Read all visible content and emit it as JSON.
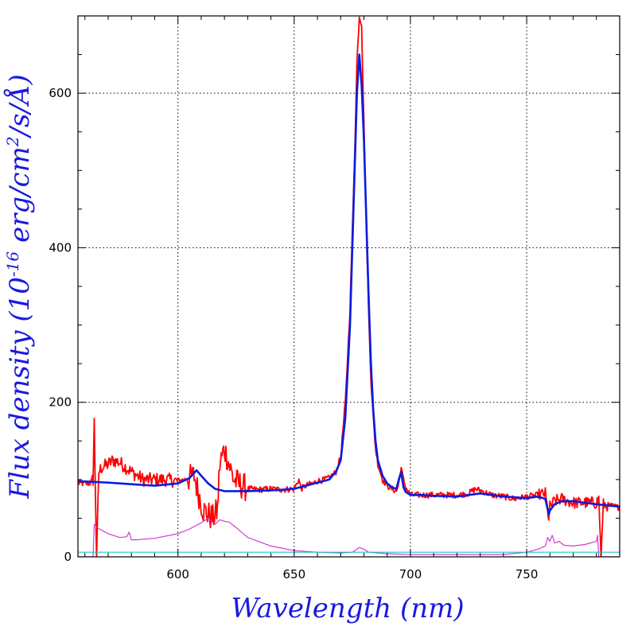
{
  "chart_data": {
    "type": "line",
    "title": "",
    "xlabel": "Wavelength (nm)",
    "ylabel": "Flux density (10",
    "ylabel_exp1": "-16",
    "ylabel_mid": " erg/cm",
    "ylabel_exp2": "2",
    "ylabel_tail": "/s/Å)",
    "xlim": [
      557,
      790
    ],
    "ylim": [
      0,
      700
    ],
    "x_ticks": [
      600,
      650,
      700,
      750
    ],
    "x_tick_labels": [
      "600",
      "650",
      "700",
      "750"
    ],
    "y_ticks": [
      0,
      200,
      400,
      600
    ],
    "y_tick_labels": [
      "0",
      "200",
      "400",
      "600"
    ],
    "grid": true,
    "series": [
      {
        "color": "#ff0000",
        "noise": true,
        "x": [
          557,
          562,
          563.5,
          564,
          565,
          566,
          567,
          570,
          572,
          575,
          580,
          585,
          590,
          595,
          600,
          603,
          605,
          607,
          609,
          611,
          613,
          615,
          617,
          618,
          620,
          622,
          624,
          626,
          630,
          635,
          640,
          645,
          650,
          652,
          653,
          655,
          658,
          660,
          663,
          665,
          668,
          670,
          672,
          674,
          675,
          676,
          677,
          678,
          679,
          680,
          681,
          682,
          683,
          684,
          685,
          686,
          688,
          690,
          692,
          694,
          695,
          696,
          697,
          698,
          700,
          705,
          710,
          715,
          720,
          725,
          728,
          731,
          735,
          740,
          745,
          750,
          755,
          758,
          759.5,
          760,
          762,
          765,
          770,
          775,
          780,
          781,
          782,
          783,
          786,
          790
        ],
        "y": [
          95,
          95,
          100,
          175,
          0,
          110,
          115,
          120,
          125,
          122,
          110,
          100,
          100,
          100,
          98,
          100,
          102,
          105,
          80,
          60,
          55,
          50,
          60,
          120,
          140,
          120,
          100,
          95,
          88,
          87,
          88,
          87,
          88,
          100,
          88,
          92,
          95,
          98,
          100,
          102,
          110,
          130,
          200,
          320,
          420,
          520,
          640,
          700,
          690,
          560,
          430,
          320,
          230,
          180,
          140,
          120,
          100,
          92,
          88,
          85,
          95,
          115,
          100,
          90,
          80,
          80,
          80,
          80,
          80,
          82,
          88,
          85,
          80,
          78,
          75,
          78,
          80,
          82,
          50,
          65,
          72,
          75,
          70,
          70,
          70,
          75,
          0,
          68,
          66,
          64
        ]
      },
      {
        "color": "#0a1ce0",
        "noise": false,
        "x": [
          557,
          570,
          580,
          590,
          600,
          605,
          608,
          610,
          613,
          616,
          620,
          625,
          630,
          640,
          650,
          655,
          660,
          665,
          668,
          670,
          672,
          674,
          675,
          676,
          677,
          678,
          679,
          680,
          681,
          682,
          683,
          684,
          685,
          686,
          688,
          690,
          692,
          694,
          695,
          696,
          697,
          698,
          700,
          705,
          710,
          720,
          730,
          735,
          740,
          750,
          755,
          758,
          759.5,
          760,
          762,
          765,
          770,
          780,
          790
        ],
        "y": [
          98,
          96,
          94,
          92,
          95,
          102,
          112,
          105,
          95,
          88,
          85,
          85,
          85,
          86,
          88,
          92,
          96,
          100,
          110,
          125,
          180,
          300,
          400,
          500,
          600,
          650,
          610,
          540,
          440,
          340,
          250,
          190,
          150,
          125,
          105,
          95,
          90,
          88,
          100,
          110,
          90,
          84,
          80,
          80,
          79,
          78,
          82,
          80,
          78,
          76,
          78,
          75,
          55,
          60,
          68,
          72,
          72,
          68,
          65
        ]
      },
      {
        "color": "#d23cd2",
        "noise": false,
        "x": [
          557,
          563.5,
          564,
          565,
          570,
          575,
          578,
          579,
          580,
          582,
          590,
          600,
          605,
          610,
          613,
          616,
          618,
          620,
          622,
          625,
          630,
          640,
          650,
          660,
          670,
          675,
          678,
          680,
          682,
          690,
          700,
          720,
          740,
          750,
          755,
          758,
          759,
          760,
          761,
          762,
          764,
          766,
          770,
          775,
          780,
          780.5,
          781,
          782,
          790
        ],
        "y": [
          0,
          0,
          42,
          38,
          30,
          25,
          26,
          32,
          22,
          22,
          24,
          30,
          36,
          44,
          50,
          42,
          48,
          46,
          45,
          38,
          25,
          14,
          8,
          6,
          5,
          6,
          12,
          10,
          6,
          4,
          3,
          3,
          3,
          6,
          10,
          14,
          25,
          20,
          28,
          18,
          20,
          15,
          14,
          16,
          20,
          28,
          0,
          0,
          0
        ]
      },
      {
        "color": "#18c8c8",
        "noise": false,
        "x": [
          557,
          600,
          650,
          700,
          750,
          790
        ],
        "y": [
          6,
          6,
          6,
          6,
          6,
          6
        ]
      }
    ]
  }
}
